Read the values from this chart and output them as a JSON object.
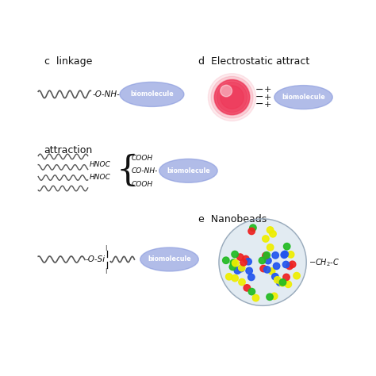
{
  "background_color": "#ffffff",
  "biomolecule_color": "#8899dd",
  "biomolecule_alpha": 0.65,
  "qd_red_color": "#ee3355",
  "text_color": "#111111",
  "nano_colors": [
    "#ee2222",
    "#2255ee",
    "#22bb22",
    "#eeee00"
  ],
  "figsize": [
    4.74,
    4.74
  ],
  "dpi": 100,
  "xlim": [
    0,
    10
  ],
  "ylim": [
    0,
    10
  ]
}
